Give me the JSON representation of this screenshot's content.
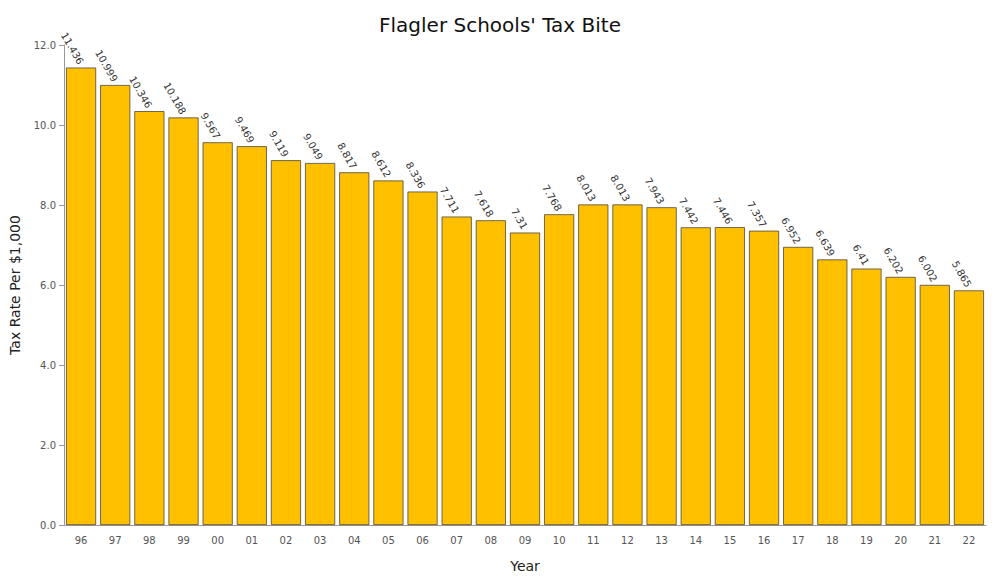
{
  "chart_data": {
    "type": "bar",
    "title": "Flagler Schools' Tax Bite",
    "x_label": "Year",
    "y_label": "Tax Rate Per $1,000",
    "categories": [
      "96",
      "97",
      "98",
      "99",
      "00",
      "01",
      "02",
      "03",
      "04",
      "05",
      "06",
      "07",
      "08",
      "09",
      "10",
      "11",
      "12",
      "13",
      "14",
      "15",
      "16",
      "17",
      "18",
      "19",
      "20",
      "21",
      "22"
    ],
    "values": [
      11.436,
      10.999,
      10.346,
      10.188,
      9.567,
      9.469,
      9.119,
      9.049,
      8.817,
      8.612,
      8.336,
      7.711,
      7.618,
      7.31,
      7.768,
      8.013,
      8.013,
      7.943,
      7.442,
      7.446,
      7.357,
      6.952,
      6.639,
      6.41,
      6.202,
      6.002,
      5.865
    ],
    "color": "#ffc000",
    "ylim": [
      0,
      12
    ],
    "yticks": [
      {
        "value": 0,
        "label": "0.0"
      },
      {
        "value": 2,
        "label": "2.0"
      },
      {
        "value": 4,
        "label": "4.0"
      },
      {
        "value": 6,
        "label": "6.0"
      },
      {
        "value": 8,
        "label": "8.0"
      },
      {
        "value": 10,
        "label": "10.0"
      },
      {
        "value": 12,
        "label": "12.0"
      }
    ],
    "grid": false,
    "data_labels": true
  }
}
